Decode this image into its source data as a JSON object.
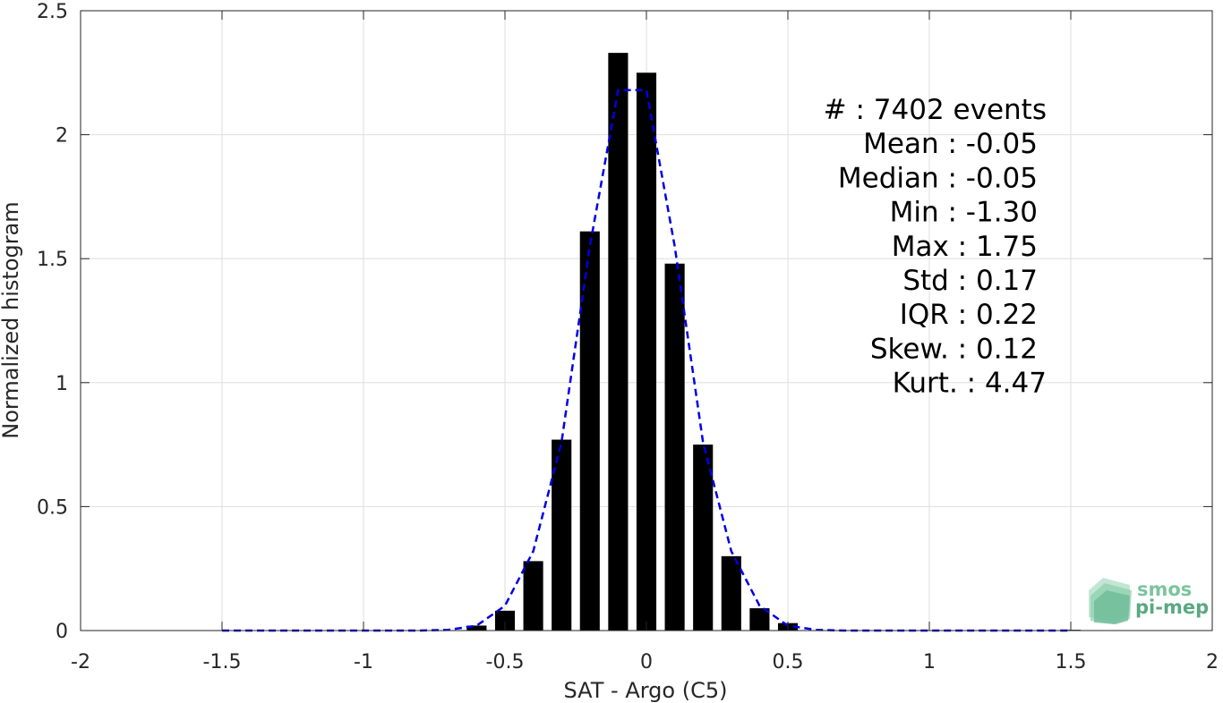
{
  "chart_data": {
    "type": "bar",
    "xlabel": "SAT - Argo (C5)",
    "ylabel": "Normalized histogram",
    "xlim": [
      -2,
      2
    ],
    "ylim": [
      0,
      2.5
    ],
    "xticks": [
      -2,
      -1.5,
      -1,
      -0.5,
      0,
      0.5,
      1,
      1.5,
      2
    ],
    "xtick_labels": [
      "-2",
      "-1.5",
      "-1",
      "-0.5",
      "0",
      "0.5",
      "1",
      "1.5",
      "2"
    ],
    "yticks": [
      0,
      0.5,
      1,
      1.5,
      2,
      2.5
    ],
    "ytick_labels": [
      "0",
      "0.5",
      "1",
      "1.5",
      "2",
      "2.5"
    ],
    "grid": true,
    "bar_width": 0.07,
    "bars": {
      "x": [
        -0.6,
        -0.5,
        -0.4,
        -0.3,
        -0.2,
        -0.1,
        0,
        0.1,
        0.2,
        0.3,
        0.4,
        0.5,
        1.5
      ],
      "values": [
        0.02,
        0.08,
        0.28,
        0.77,
        1.61,
        2.33,
        2.25,
        1.48,
        0.75,
        0.3,
        0.09,
        0.03,
        0.003
      ],
      "color": "#000000"
    },
    "fit_curve": {
      "style": "dashed",
      "color": "#0000e6",
      "x": [
        -1.5,
        -1.3,
        -1.1,
        -0.9,
        -0.8,
        -0.7,
        -0.6,
        -0.5,
        -0.4,
        -0.3,
        -0.2,
        -0.1,
        0.0,
        0.1,
        0.2,
        0.3,
        0.4,
        0.5,
        0.6,
        0.7,
        0.8,
        1.0,
        1.2,
        1.5
      ],
      "y": [
        0,
        0,
        0,
        0,
        0,
        0.003,
        0.02,
        0.1,
        0.32,
        0.76,
        1.55,
        2.18,
        2.18,
        1.55,
        0.76,
        0.32,
        0.1,
        0.02,
        0.003,
        0,
        0,
        0,
        0,
        0
      ]
    },
    "stats": [
      "#  : 7402 events",
      "Mean : -0.05",
      "Median : -0.05",
      "Min : -1.30",
      "Max : 1.75",
      "Std : 0.17",
      "IQR : 0.22",
      "Skew. : 0.12",
      "Kurt. : 4.47"
    ]
  },
  "logo": {
    "line1": "smos",
    "line2": "pi-mep",
    "color1": "#7cc4a0",
    "color2": "#5aa882"
  }
}
